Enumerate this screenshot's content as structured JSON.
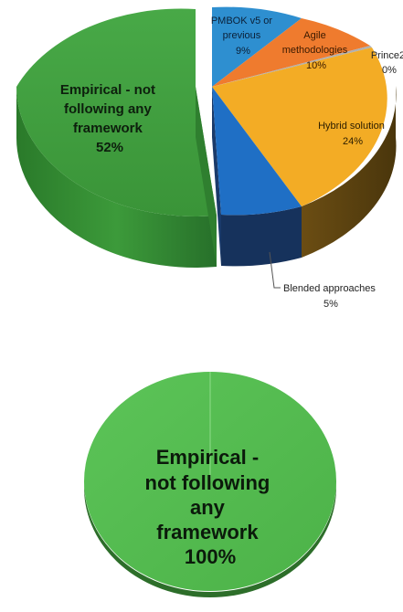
{
  "chart_data": [
    {
      "type": "pie",
      "style": "3d-exploded",
      "title": "",
      "slices": [
        {
          "label": "Empirical - not following any framework",
          "pct_label": "52%",
          "value": 52,
          "color": "#3f9c3f"
        },
        {
          "label": "PMBOK v5 or previous",
          "pct_label": "9%",
          "value": 9,
          "color": "#2e8fd0"
        },
        {
          "label": "Agile methodologies",
          "pct_label": "10%",
          "value": 10,
          "color": "#ef7b2e"
        },
        {
          "label": "Prince2",
          "pct_label": "0%",
          "value": 0,
          "color": "#b0b0b0"
        },
        {
          "label": "Hybrid solution",
          "pct_label": "24%",
          "value": 24,
          "color": "#f3ac25"
        },
        {
          "label": "Blended approaches",
          "pct_label": "5%",
          "value": 5,
          "color": "#1f6fc5"
        }
      ]
    },
    {
      "type": "pie",
      "style": "3d",
      "title": "",
      "slices": [
        {
          "label": "Empirical - not following any framework",
          "pct_label": "100%",
          "value": 100,
          "color": "#52bb4f"
        }
      ]
    }
  ]
}
